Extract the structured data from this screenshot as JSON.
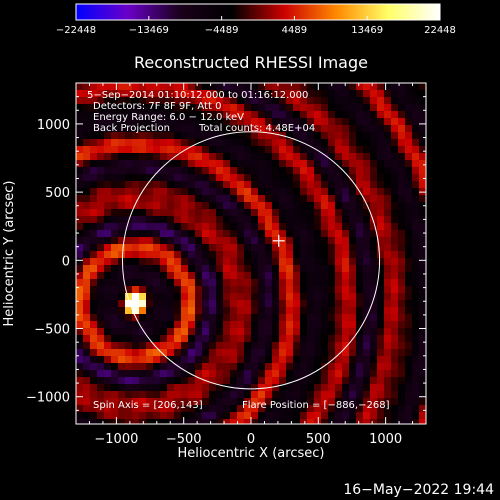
{
  "chart_data": {
    "type": "heatmap",
    "title": "Reconstructed RHESSI Image",
    "xlabel": "Heliocentric X (arcsec)",
    "ylabel": "Heliocentric Y (arcsec)",
    "xlim": [
      -1300,
      1300
    ],
    "ylim": [
      -1200,
      1300
    ],
    "xticks": [
      -1000,
      -500,
      0,
      500,
      1000
    ],
    "yticks": [
      -1000,
      -500,
      0,
      500,
      1000
    ],
    "xtick_labels": [
      "−1000",
      "−500",
      "0",
      "500",
      "1000"
    ],
    "ytick_labels": [
      "−1000",
      "−500",
      "0",
      "500",
      "1000"
    ],
    "colorbar": {
      "min": -22448,
      "max": 22448,
      "ticks": [
        -22448,
        -13469,
        -4489,
        4489,
        13469,
        22448
      ],
      "tick_labels": [
        "−22448",
        "−13469",
        "−4489",
        "4489",
        "13469",
        "22448"
      ],
      "colors": [
        "#0000ff",
        "#6a00c8",
        "#1a001a",
        "#000000",
        "#cc0000",
        "#ff8800",
        "#ffff66",
        "#ffffff"
      ]
    },
    "annotations": {
      "time_range": "5−Sep−2014 01:10:12.000 to 01:16:12.000",
      "detectors": "Detectors: 7F 8F 9F, Att 0",
      "energy": "Energy Range: 6.0 − 12.0 keV",
      "method": "Back Projection",
      "total_counts": "Total counts: 4.48E+04",
      "spin_axis": "Spin Axis = [206,143]",
      "flare_position": "Flare Position = [−886,−268]"
    },
    "solar_limb_radius": 955,
    "center_marker": [
      206,
      143
    ],
    "source": {
      "x": -860,
      "y": -310,
      "peak": 22448
    }
  },
  "footer": {
    "timestamp": "16−May−2022 19:44"
  }
}
